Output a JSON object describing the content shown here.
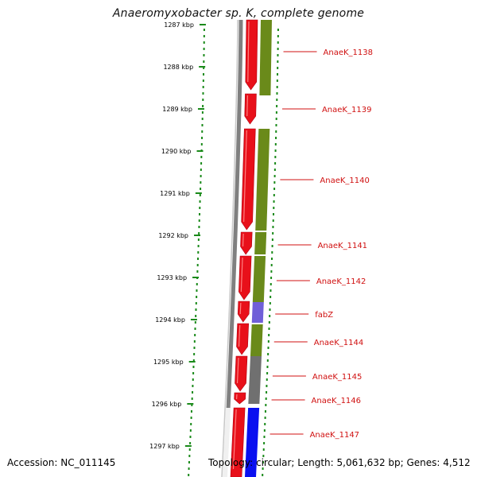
{
  "title": "Anaeromyxobacter sp. K, complete genome",
  "footer": {
    "accession": "Accession: NC_011145",
    "topology": "Topology: circular; Length: 5,061,632 bp; Genes: 4,512"
  },
  "ticks": [
    "1287 kbp",
    "1288 kbp",
    "1289 kbp",
    "1290 kbp",
    "1291 kbp",
    "1292 kbp",
    "1293 kbp",
    "1294 kbp",
    "1295 kbp",
    "1296 kbp",
    "1297 kbp"
  ],
  "genes": [
    {
      "name": "AnaeK_1138",
      "color": "#e8101a"
    },
    {
      "name": "AnaeK_1139",
      "color": "#e8101a"
    },
    {
      "name": "AnaeK_1140",
      "color": "#e8101a"
    },
    {
      "name": "AnaeK_1141",
      "color": "#e8101a"
    },
    {
      "name": "AnaeK_1142",
      "color": "#e8101a"
    },
    {
      "name": "fabZ",
      "color": "#e8101a"
    },
    {
      "name": "AnaeK_1144",
      "color": "#e8101a"
    },
    {
      "name": "AnaeK_1145",
      "color": "#e8101a"
    },
    {
      "name": "AnaeK_1146",
      "color": "#e8101a"
    },
    {
      "name": "AnaeK_1147",
      "color": "#e8101a"
    }
  ],
  "colors": {
    "cds": "#e8101a",
    "cog_green": "#6a8a1a",
    "cog_purple": "#7060d8",
    "cog_grey": "#707070",
    "cog_blue": "#0a10f0",
    "backbone": "#808080",
    "tick": "#1a8a1a",
    "label": "#d01010"
  }
}
